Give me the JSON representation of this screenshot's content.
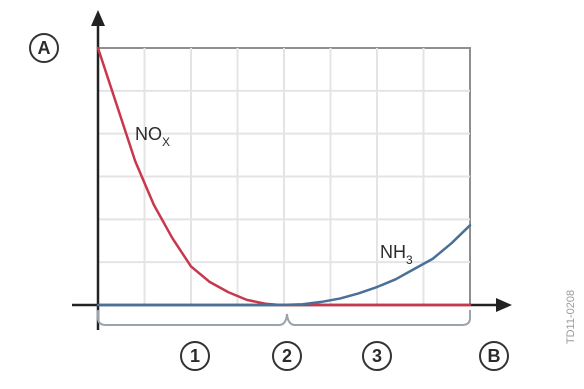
{
  "chart_data": {
    "type": "line",
    "axis_labels": {
      "y": "A",
      "x": "B"
    },
    "zone_labels": [
      "1",
      "2",
      "3"
    ],
    "series": [
      {
        "name": "NOX",
        "label_main": "NO",
        "label_sub": "X",
        "color": "#c8374d",
        "description": "decreasing curve",
        "points": [
          [
            0,
            1.0
          ],
          [
            0.05,
            0.78
          ],
          [
            0.1,
            0.56
          ],
          [
            0.15,
            0.39
          ],
          [
            0.2,
            0.26
          ],
          [
            0.25,
            0.15
          ],
          [
            0.3,
            0.09
          ],
          [
            0.35,
            0.05
          ],
          [
            0.4,
            0.02
          ],
          [
            0.45,
            0.005
          ],
          [
            0.49,
            0.0
          ],
          [
            1.0,
            0.0
          ]
        ]
      },
      {
        "name": "NH3",
        "label_main": "NH",
        "label_sub": "3",
        "color": "#4a6f98",
        "description": "increasing curve",
        "points": [
          [
            0,
            0.0
          ],
          [
            0.49,
            0.0
          ],
          [
            0.55,
            0.003
          ],
          [
            0.6,
            0.012
          ],
          [
            0.65,
            0.025
          ],
          [
            0.7,
            0.045
          ],
          [
            0.75,
            0.07
          ],
          [
            0.8,
            0.1
          ],
          [
            0.85,
            0.14
          ],
          [
            0.9,
            0.18
          ],
          [
            0.95,
            0.24
          ],
          [
            1.0,
            0.31
          ]
        ]
      }
    ],
    "grid": true,
    "xlim": [
      0,
      1
    ],
    "ylim": [
      0,
      1
    ],
    "code": "TD11-0208"
  }
}
